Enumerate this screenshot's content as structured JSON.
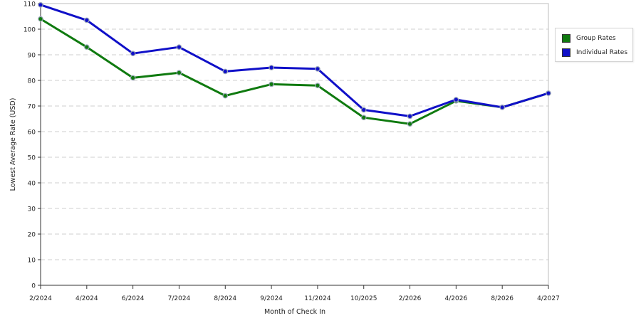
{
  "chart_data": {
    "type": "line",
    "xlabel": "Month of Check In",
    "ylabel": "Lowest Average Rate (USD)",
    "ylim": [
      0,
      110
    ],
    "yticks": [
      0,
      10,
      20,
      30,
      40,
      50,
      60,
      70,
      80,
      90,
      100,
      110
    ],
    "grid": true,
    "legend_position": "right",
    "categories": [
      "2/2024",
      "4/2024",
      "6/2024",
      "7/2024",
      "8/2024",
      "9/2024",
      "11/2024",
      "10/2025",
      "2/2026",
      "4/2026",
      "8/2026",
      "4/2027"
    ],
    "series": [
      {
        "name": "Group Rates",
        "color": "#0f7a0f",
        "values": [
          104,
          93,
          81,
          83,
          74,
          78.5,
          78,
          65.5,
          63,
          72,
          69.5,
          75
        ]
      },
      {
        "name": "Individual Rates",
        "color": "#1010c8",
        "values": [
          109.5,
          103.5,
          90.5,
          93,
          83.5,
          85,
          84.5,
          68.5,
          66,
          72.5,
          69.5,
          75
        ]
      }
    ]
  }
}
